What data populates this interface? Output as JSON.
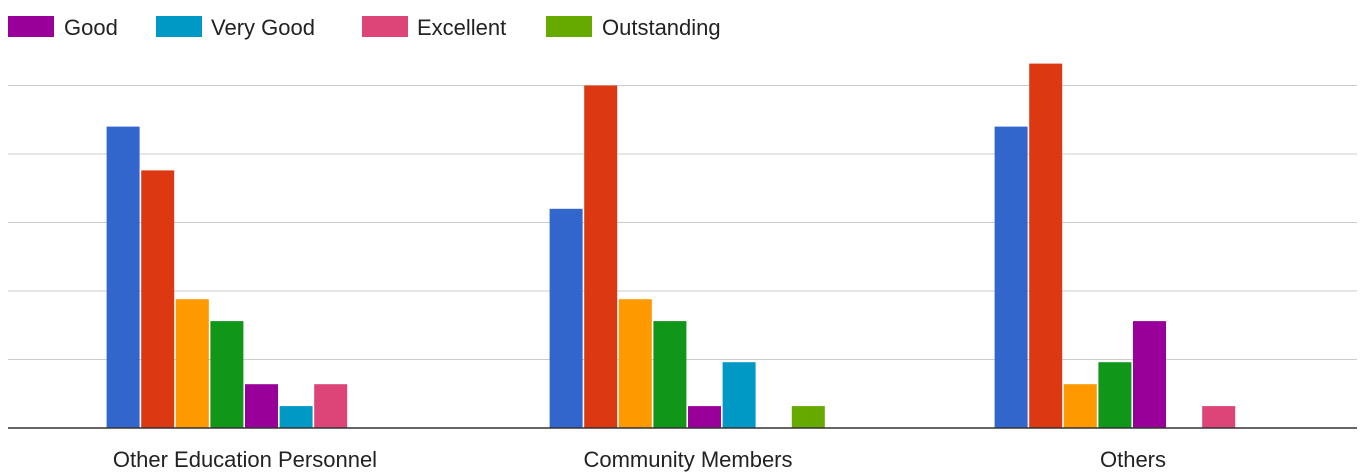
{
  "chart_data": {
    "type": "bar",
    "title": "",
    "xlabel": "",
    "ylabel": "",
    "grid": true,
    "legend_position": "top-left",
    "legend_visible": [
      "Good",
      "Very Good",
      "Excellent",
      "Outstanding"
    ],
    "ylim": [
      0,
      15
    ],
    "categories": [
      "Other Education Personnel",
      "Community Members",
      "Others"
    ],
    "series": [
      {
        "name": "",
        "color": "#3366cc",
        "values": [
          11,
          8,
          11
        ]
      },
      {
        "name": "",
        "color": "#dc3912",
        "values": [
          9.4,
          12.5,
          13.3
        ]
      },
      {
        "name": "",
        "color": "#ff9900",
        "values": [
          4.7,
          4.7,
          1.6
        ]
      },
      {
        "name": "",
        "color": "#109618",
        "values": [
          3.9,
          3.9,
          2.4
        ]
      },
      {
        "name": "Good",
        "color": "#990099",
        "values": [
          1.6,
          0.8,
          3.9
        ]
      },
      {
        "name": "Very Good",
        "color": "#0099c6",
        "values": [
          0.8,
          2.4,
          0
        ]
      },
      {
        "name": "Excellent",
        "color": "#dd4477",
        "values": [
          1.6,
          0,
          0.8
        ]
      },
      {
        "name": "Outstanding",
        "color": "#66aa00",
        "values": [
          0,
          0.8,
          0
        ]
      }
    ]
  }
}
